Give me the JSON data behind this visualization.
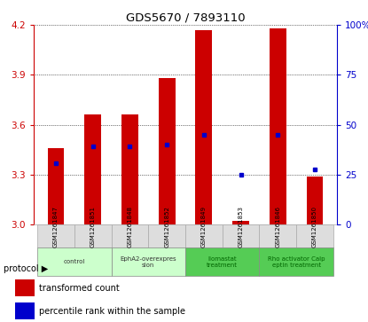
{
  "title": "GDS5670 / 7893110",
  "samples": [
    "GSM1261847",
    "GSM1261851",
    "GSM1261848",
    "GSM1261852",
    "GSM1261849",
    "GSM1261853",
    "GSM1261846",
    "GSM1261850"
  ],
  "bar_tops": [
    3.46,
    3.66,
    3.66,
    3.88,
    4.17,
    3.02,
    4.18,
    3.29
  ],
  "bar_bottom": 3.0,
  "blue_y": [
    3.37,
    3.47,
    3.47,
    3.48,
    3.54,
    3.3,
    3.54,
    3.33
  ],
  "ylim_left": [
    3.0,
    4.2
  ],
  "ylim_right": [
    0,
    100
  ],
  "yticks_left": [
    3.0,
    3.3,
    3.6,
    3.9,
    4.2
  ],
  "yticks_right": [
    0,
    25,
    50,
    75,
    100
  ],
  "protocols": [
    {
      "label": "control",
      "span": [
        0,
        2
      ],
      "color": "#ccffcc",
      "text_color": "#333333"
    },
    {
      "label": "EphA2-overexpres\nsion",
      "span": [
        2,
        4
      ],
      "color": "#ccffcc",
      "text_color": "#333333"
    },
    {
      "label": "Ilomastat\ntreatment",
      "span": [
        4,
        6
      ],
      "color": "#55cc55",
      "text_color": "#006600"
    },
    {
      "label": "Rho activator Calp\neptin treatment",
      "span": [
        6,
        8
      ],
      "color": "#55cc55",
      "text_color": "#006600"
    }
  ],
  "bar_color": "#cc0000",
  "dot_color": "#0000cc",
  "bg_color": "#dddddd",
  "plot_bg": "#ffffff",
  "left_axis_color": "#cc0000",
  "right_axis_color": "#0000cc",
  "bar_width": 0.45
}
